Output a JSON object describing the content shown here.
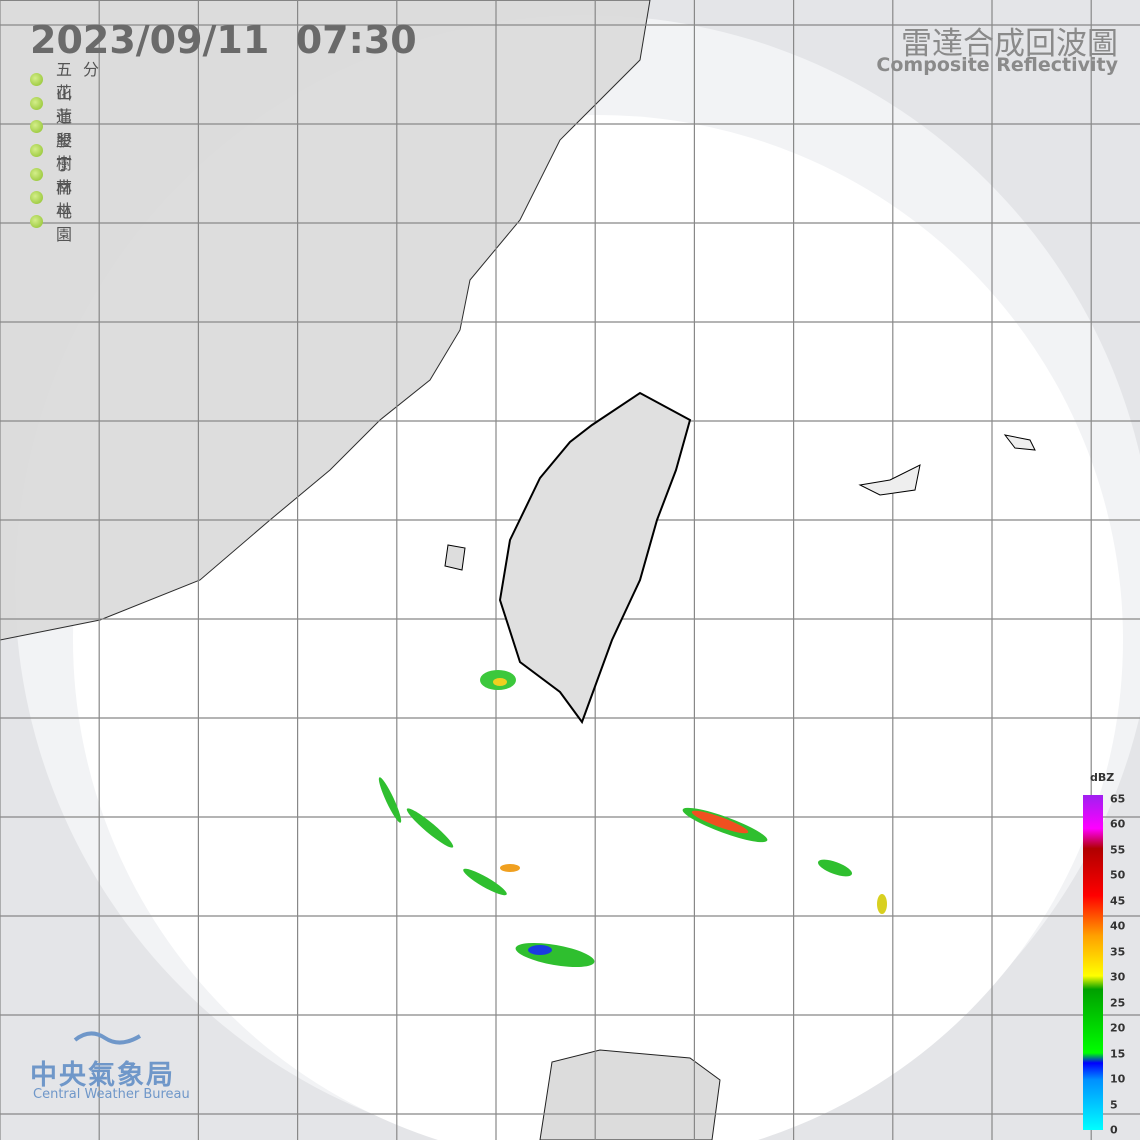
{
  "header": {
    "timestamp": "2023/09/11  07:30",
    "title_zh": "雷達合成回波圖",
    "title_en": "Composite Reflectivity"
  },
  "stations": [
    "五分山",
    "花蓮",
    "七股",
    "墾丁",
    "樹林",
    "南屯",
    "林園"
  ],
  "legend": {
    "unit": "dBZ",
    "levels": [
      65,
      60,
      55,
      50,
      45,
      40,
      35,
      30,
      25,
      20,
      15,
      10,
      5,
      0
    ]
  },
  "logo": {
    "name_zh": "中央氣象局",
    "name_en": "Central Weather Bureau"
  }
}
